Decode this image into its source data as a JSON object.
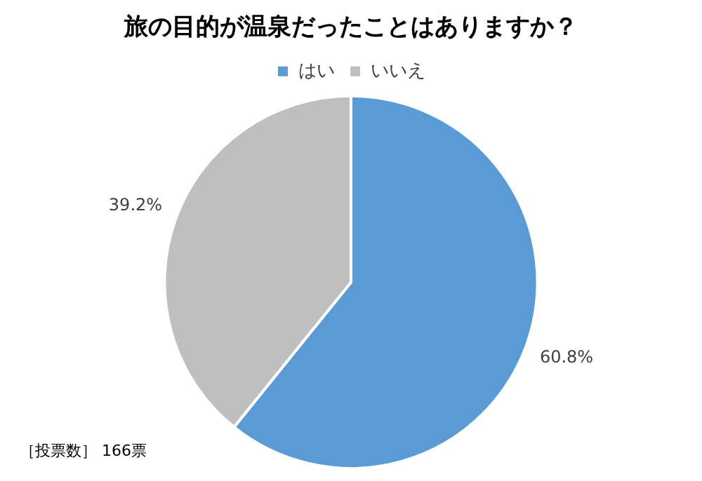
{
  "chart_data": {
    "type": "pie",
    "title": "旅の目的が温泉だったことはありますか？",
    "categories": [
      "はい",
      "いいえ"
    ],
    "values": [
      60.8,
      39.2
    ],
    "colors": [
      "#5b9bd5",
      "#bfbfbf"
    ],
    "value_labels": [
      "60.8%",
      "39.2%"
    ],
    "legend": "top",
    "annotations": [
      "［投票数］ 166票"
    ]
  }
}
